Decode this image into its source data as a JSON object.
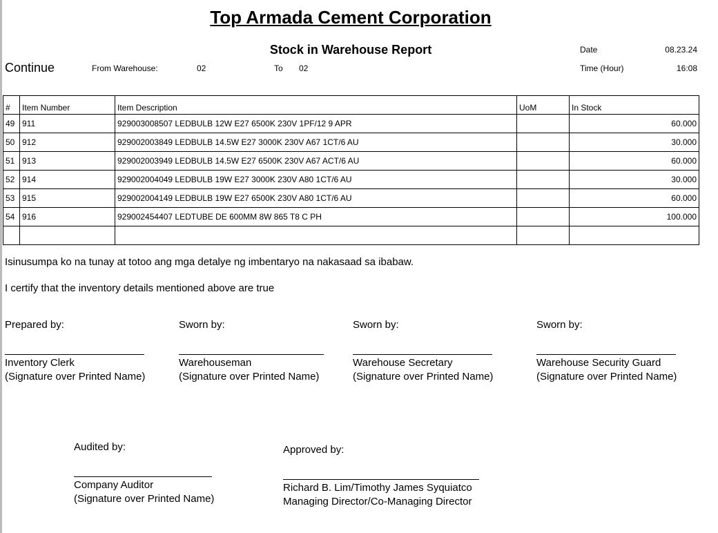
{
  "header": {
    "title": "Top Armada Cement Corporation",
    "subtitle": "Stock in Warehouse Report",
    "continue": "Continue",
    "from_label": "From Warehouse:",
    "from_value": "02",
    "to_label": "To",
    "to_value": "02",
    "date_label": "Date",
    "date_value": "08.23.24",
    "time_label": "Time (Hour)",
    "time_value": "16:08"
  },
  "table": {
    "columns": [
      "#",
      "Item Number",
      "Item Description",
      "UoM",
      "In Stock"
    ],
    "rows": [
      [
        "49",
        "911",
        "929003008507 LEDBULB 12W E27 6500K 230V 1PF/12 9 APR",
        "",
        "60.000"
      ],
      [
        "50",
        "912",
        "929002003849 LEDBULB 14.5W E27 3000K 230V A67 1CT/6 AU",
        "",
        "30.000"
      ],
      [
        "51",
        "913",
        "929002003949 LEDBULB 14.5W E27 6500K 230V A67 ACT/6 AU",
        "",
        "60.000"
      ],
      [
        "52",
        "914",
        "929002004049 LEDBULB 19W E27 3000K 230V A80 1CT/6 AU",
        "",
        "30.000"
      ],
      [
        "53",
        "915",
        "929002004149 LEDBULB 19W E27 6500K 230V A80 1CT/6 AU",
        "",
        "60.000"
      ],
      [
        "54",
        "916",
        "929002454407 LEDTUBE DE 600MM 8W 865 T8 C PH",
        "",
        "100.000"
      ]
    ]
  },
  "statements": [
    "Isinusumpa ko na tunay at totoo ang mga detalye ng imbentaryo na nakasaad sa ibabaw.",
    "I certify that the inventory details mentioned above are true"
  ],
  "signatures": [
    {
      "label": "Prepared by:",
      "role": "Inventory Clerk",
      "note": "(Signature over Printed Name)"
    },
    {
      "label": "Sworn by:",
      "role": "Warehouseman",
      "note": "(Signature over Printed Name)"
    },
    {
      "label": "Sworn by:",
      "role": "Warehouse Secretary",
      "note": "(Signature over Printed Name)"
    },
    {
      "label": "Sworn by:",
      "role": "Warehouse Security Guard",
      "note": "(Signature over Printed Name)"
    }
  ],
  "approvals": [
    {
      "label": "Audited by:",
      "role": "Company Auditor",
      "note": "(Signature over Printed Name)"
    },
    {
      "label": "Approved by:",
      "role": "Richard B. Lim/Timothy James Syquiatco",
      "note": "Managing Director/Co-Managing Director"
    }
  ]
}
